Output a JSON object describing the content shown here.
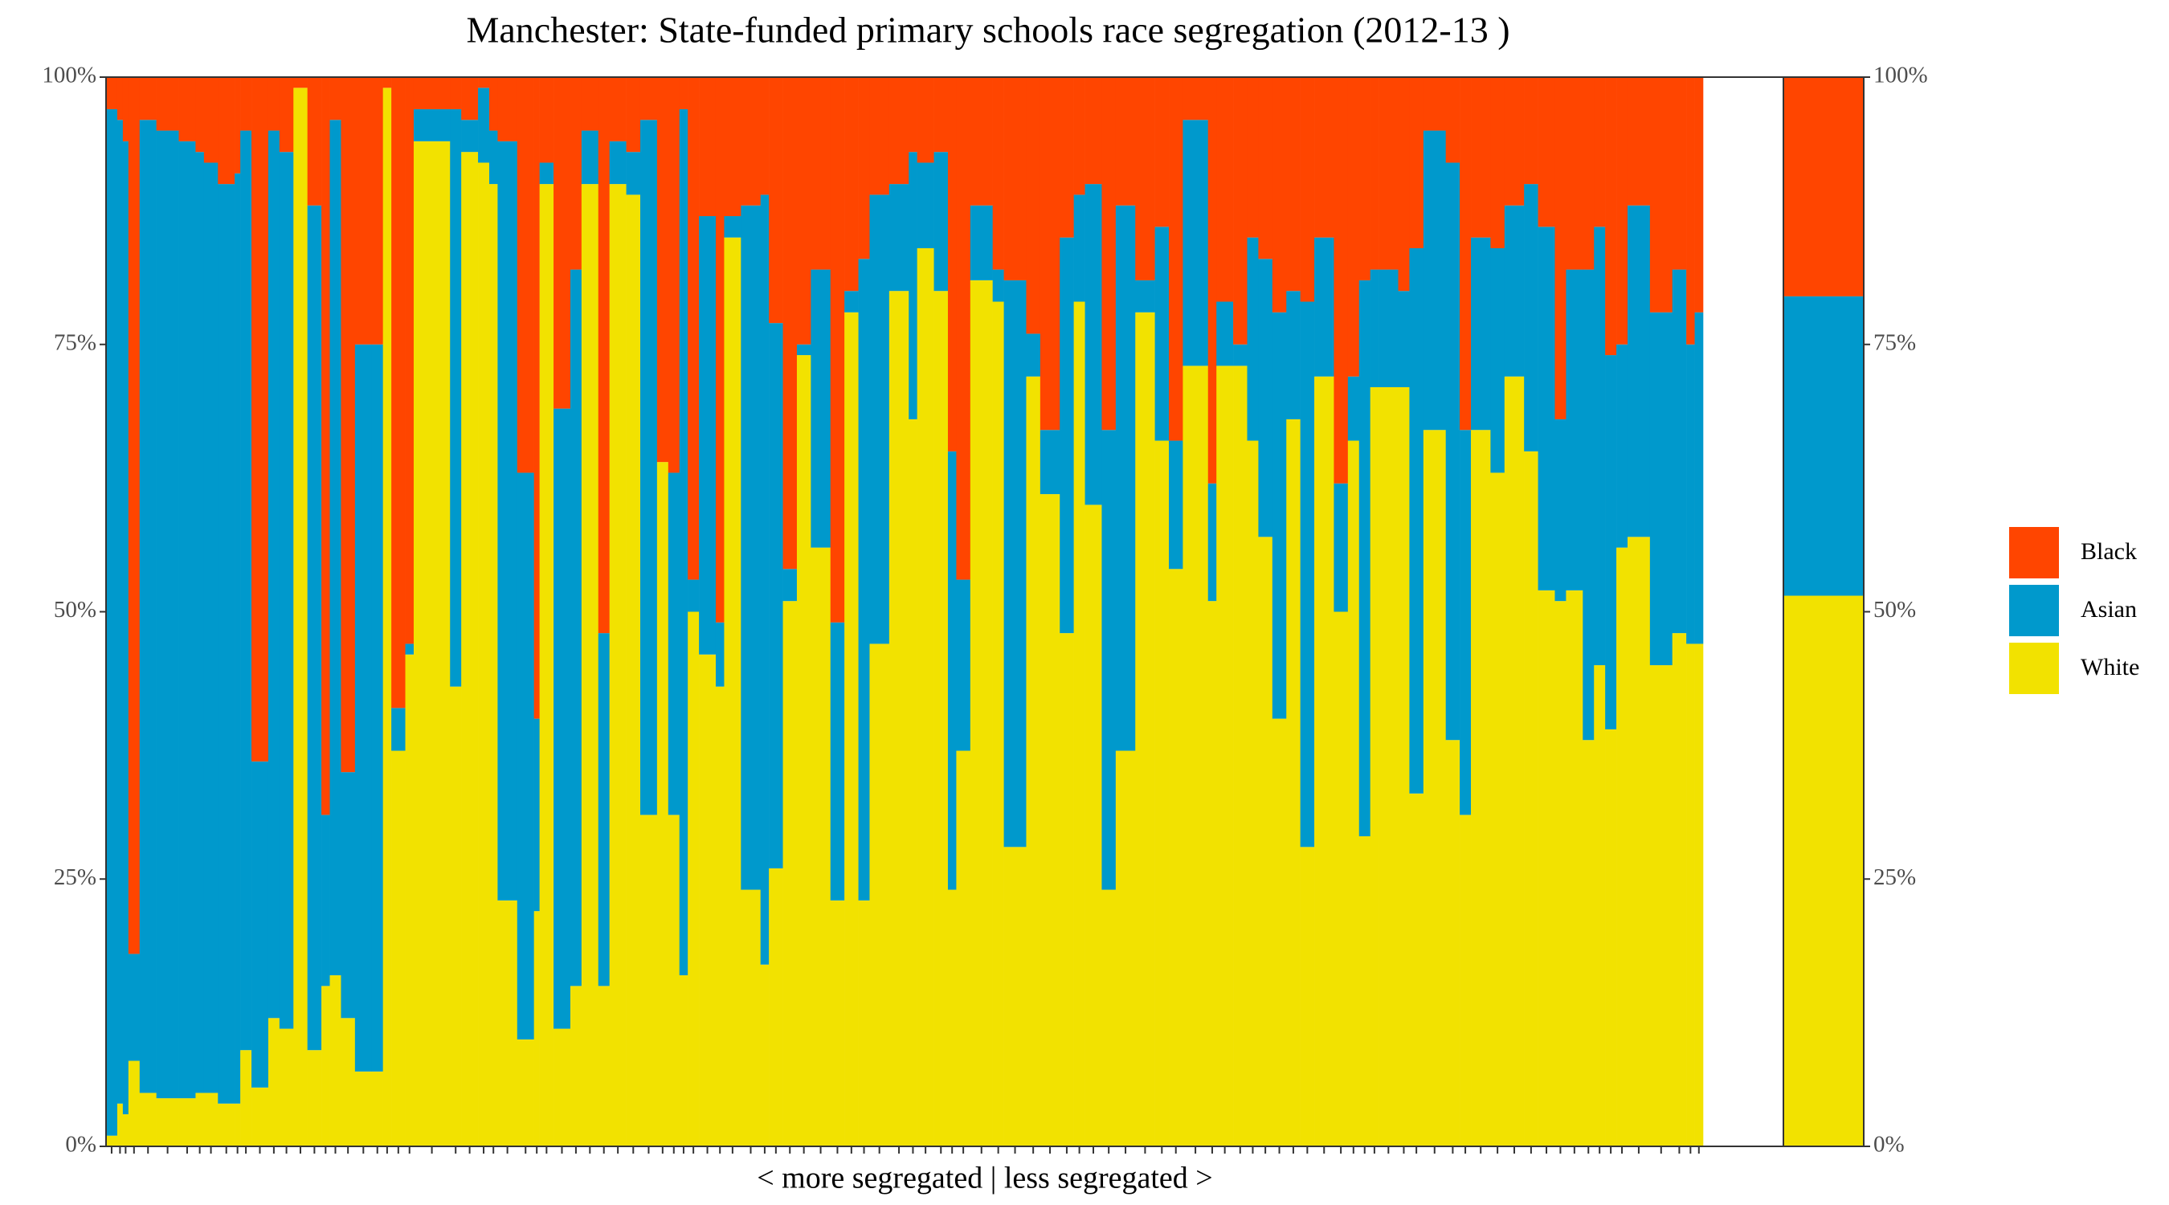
{
  "chart_data": {
    "type": "marimekko",
    "title": "Manchester: State-funded primary schools race segregation (2012-13 )",
    "x_label": "< more segregated | less segregated >",
    "ylim": [
      0,
      100
    ],
    "yticks": [
      {
        "value": 0,
        "label": "0%"
      },
      {
        "value": 25,
        "label": "25%"
      },
      {
        "value": 50,
        "label": "50%"
      },
      {
        "value": 75,
        "label": "75%"
      },
      {
        "value": 100,
        "label": "100%"
      }
    ],
    "legend": "right",
    "widths": [
      8,
      4,
      4,
      8,
      12,
      16,
      12,
      6,
      10,
      12,
      4,
      8,
      12,
      8,
      10,
      10,
      10,
      6,
      8,
      10,
      12,
      8,
      6,
      10,
      6,
      26,
      8,
      12,
      8,
      6,
      14,
      12,
      4,
      10,
      12,
      8,
      12,
      8,
      12,
      10,
      12,
      8,
      8,
      6,
      8,
      12,
      6,
      12,
      14,
      6,
      10,
      10,
      10,
      14,
      10,
      10,
      8,
      14,
      14,
      6,
      12,
      10,
      6,
      10,
      16,
      8,
      16,
      10,
      14,
      10,
      8,
      12,
      10,
      14,
      14,
      10,
      10,
      18,
      6,
      12,
      10,
      8,
      10,
      10,
      10,
      10,
      14,
      10,
      8,
      8,
      6,
      14,
      8,
      10,
      16,
      10,
      8,
      14,
      10,
      14,
      10,
      12,
      8,
      12,
      8,
      8,
      8,
      8,
      16,
      16,
      10,
      6,
      6
    ],
    "series": [
      {
        "name": "Black",
        "color": "#ff4500",
        "overall": 20.5,
        "values": [
          3,
          4,
          6,
          82,
          4,
          5,
          6,
          7,
          8,
          10,
          9,
          5,
          64,
          5,
          7,
          1,
          12,
          69,
          4,
          65,
          25,
          25,
          1,
          59,
          53,
          3,
          3,
          4,
          1,
          5,
          6,
          37,
          60,
          8,
          31,
          18,
          5,
          52,
          6,
          7,
          4,
          36,
          37,
          3,
          47,
          13,
          51,
          13,
          12,
          11,
          23,
          46,
          25,
          18,
          51,
          20,
          17,
          11,
          10,
          7,
          8,
          7,
          35,
          47,
          12,
          18,
          19,
          24,
          33,
          15,
          11,
          10,
          33,
          12,
          19,
          14,
          34,
          4,
          38,
          21,
          25,
          15,
          17,
          22,
          20,
          21,
          15,
          38,
          28,
          19,
          18,
          18,
          20,
          16,
          5,
          8,
          33,
          15,
          16,
          12,
          10,
          14,
          32,
          18,
          18,
          14,
          26,
          25,
          12,
          22,
          18,
          25,
          22
        ]
      },
      {
        "name": "Asian",
        "color": "#0099cc",
        "overall": 28,
        "values": [
          96,
          92,
          91,
          10,
          91,
          90.5,
          89.5,
          88,
          87,
          86,
          87,
          86,
          30.5,
          83,
          82,
          0,
          79,
          16,
          80,
          23,
          68,
          68,
          0,
          4,
          1,
          3,
          54,
          3,
          7,
          5,
          71,
          53,
          18,
          2,
          58,
          67,
          5,
          33,
          4,
          4,
          65,
          0,
          32,
          81,
          3,
          41,
          6,
          2,
          64,
          72,
          51,
          3,
          1,
          26,
          26,
          2,
          60,
          42,
          10,
          25,
          8,
          13,
          41,
          16,
          7,
          3,
          53,
          4,
          6,
          37,
          10,
          30,
          43,
          51,
          3,
          20,
          12,
          23,
          11,
          6,
          2,
          19,
          26,
          38,
          12,
          51,
          13,
          12,
          6,
          52,
          11,
          11,
          9,
          51,
          28,
          54,
          36,
          18,
          21,
          16,
          25,
          34,
          17,
          30,
          44,
          41,
          35,
          19,
          31,
          33,
          34,
          28,
          31
        ]
      },
      {
        "name": "White",
        "color": "#f2e200",
        "overall": 51.5,
        "values": [
          1,
          4,
          3,
          8,
          5,
          4.5,
          4.5,
          5,
          5,
          4,
          4,
          9,
          5.5,
          12,
          11,
          99,
          9,
          15,
          16,
          12,
          7,
          7,
          99,
          37,
          46,
          94,
          43,
          93,
          92,
          90,
          23,
          10,
          22,
          90,
          11,
          15,
          90,
          15,
          90,
          89,
          31,
          64,
          31,
          16,
          50,
          46,
          43,
          85,
          24,
          17,
          26,
          51,
          74,
          56,
          23,
          78,
          23,
          47,
          80,
          68,
          84,
          80,
          24,
          37,
          81,
          79,
          28,
          72,
          61,
          48,
          79,
          60,
          24,
          37,
          78,
          66,
          54,
          73,
          51,
          73,
          73,
          66,
          57,
          40,
          68,
          28,
          72,
          50,
          66,
          29,
          71,
          71,
          71,
          33,
          67,
          38,
          31,
          67,
          63,
          72,
          65,
          52,
          51,
          52,
          38,
          45,
          39,
          56,
          57,
          45,
          48,
          47,
          47
        ]
      }
    ]
  }
}
